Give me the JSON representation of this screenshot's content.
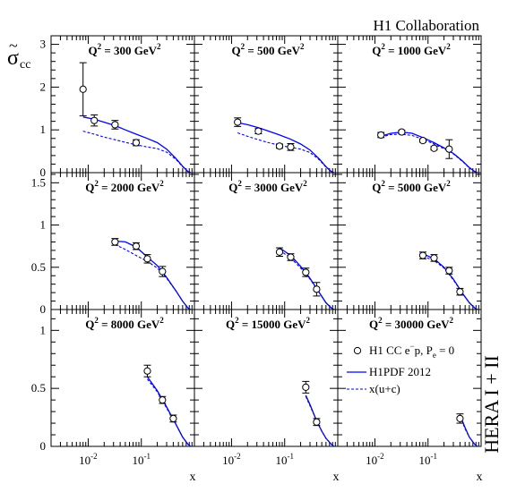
{
  "chart_data": {
    "type": "scatter",
    "collaboration": "H1 Collaboration",
    "ylabel_main": "σ",
    "ylabel_tilde": "~",
    "ylabel_sub": "cc",
    "xlabel": "x",
    "side_label": "HERA I + II",
    "x_log_scale": true,
    "xlim": [
      0.002,
      1.0
    ],
    "x_ticks": [
      {
        "base": "10",
        "exp": "-2",
        "value": 0.01
      },
      {
        "base": "10",
        "exp": "-1",
        "value": 0.1
      }
    ],
    "rows": [
      {
        "ylim": [
          0,
          3.2
        ],
        "yticks": [
          0,
          1,
          2,
          3
        ],
        "ytick_labels": [
          "0",
          "1",
          "2",
          "3"
        ]
      },
      {
        "ylim": [
          0,
          1.62
        ],
        "yticks": [
          0,
          0.5,
          1,
          1.5
        ],
        "ytick_labels": [
          "0",
          "0.5",
          "1",
          "1.5"
        ]
      },
      {
        "ylim": [
          0,
          1.18
        ],
        "yticks": [
          0,
          0.5,
          1
        ],
        "ytick_labels": [
          "0",
          "0.5",
          "1"
        ]
      }
    ],
    "legend": {
      "entries": [
        {
          "pre": "H1 CC e",
          "sup": "−",
          "mid": "p, P",
          "sub": "e",
          "post": " = 0",
          "style": "marker"
        },
        {
          "label": "H1PDF 2012",
          "style": "solid"
        },
        {
          "label": "x(u+c)",
          "style": "dashed"
        }
      ]
    },
    "panels": [
      {
        "q2_prefix": "Q",
        "q2_sup": "2",
        "q2_value": " = 300 GeV",
        "q2_unit_sup": "2",
        "points": [
          {
            "x": 0.008,
            "y": 1.95,
            "err": 0.62
          },
          {
            "x": 0.013,
            "y": 1.22,
            "err": 0.13
          },
          {
            "x": 0.032,
            "y": 1.12,
            "err": 0.1
          },
          {
            "x": 0.08,
            "y": 0.7,
            "err": 0.07
          }
        ],
        "full": [
          [
            0.008,
            1.3
          ],
          [
            0.013,
            1.25
          ],
          [
            0.02,
            1.18
          ],
          [
            0.032,
            1.1
          ],
          [
            0.05,
            1.0
          ],
          [
            0.08,
            0.9
          ],
          [
            0.13,
            0.8
          ],
          [
            0.2,
            0.7
          ],
          [
            0.3,
            0.55
          ],
          [
            0.45,
            0.33
          ],
          [
            0.6,
            0.15
          ],
          [
            0.75,
            0.03
          ],
          [
            0.85,
            0
          ]
        ],
        "dashed": [
          [
            0.008,
            0.97
          ],
          [
            0.013,
            0.9
          ],
          [
            0.02,
            0.83
          ],
          [
            0.032,
            0.77
          ],
          [
            0.05,
            0.71
          ],
          [
            0.08,
            0.65
          ],
          [
            0.13,
            0.6
          ],
          [
            0.2,
            0.56
          ],
          [
            0.3,
            0.48
          ],
          [
            0.45,
            0.31
          ],
          [
            0.6,
            0.14
          ],
          [
            0.75,
            0.03
          ],
          [
            0.85,
            0
          ]
        ]
      },
      {
        "q2_prefix": "Q",
        "q2_sup": "2",
        "q2_value": " = 500 GeV",
        "q2_unit_sup": "2",
        "points": [
          {
            "x": 0.013,
            "y": 1.18,
            "err": 0.1
          },
          {
            "x": 0.032,
            "y": 0.97,
            "err": 0.06
          },
          {
            "x": 0.08,
            "y": 0.62,
            "err": 0.05
          },
          {
            "x": 0.13,
            "y": 0.6,
            "err": 0.08
          }
        ],
        "full": [
          [
            0.013,
            1.17
          ],
          [
            0.02,
            1.12
          ],
          [
            0.032,
            1.05
          ],
          [
            0.05,
            0.97
          ],
          [
            0.08,
            0.88
          ],
          [
            0.13,
            0.78
          ],
          [
            0.2,
            0.67
          ],
          [
            0.3,
            0.53
          ],
          [
            0.45,
            0.32
          ],
          [
            0.6,
            0.14
          ],
          [
            0.75,
            0.03
          ],
          [
            0.85,
            0
          ]
        ],
        "dashed": [
          [
            0.013,
            0.93
          ],
          [
            0.02,
            0.85
          ],
          [
            0.032,
            0.77
          ],
          [
            0.05,
            0.7
          ],
          [
            0.08,
            0.64
          ],
          [
            0.13,
            0.59
          ],
          [
            0.2,
            0.55
          ],
          [
            0.3,
            0.47
          ],
          [
            0.45,
            0.3
          ],
          [
            0.6,
            0.13
          ],
          [
            0.75,
            0.03
          ],
          [
            0.85,
            0
          ]
        ]
      },
      {
        "q2_prefix": "Q",
        "q2_sup": "2",
        "q2_value": " = 1000 GeV",
        "q2_unit_sup": "2",
        "points": [
          {
            "x": 0.013,
            "y": 0.88,
            "err": 0.06
          },
          {
            "x": 0.032,
            "y": 0.95,
            "err": 0.04
          },
          {
            "x": 0.08,
            "y": 0.75,
            "err": 0.04
          },
          {
            "x": 0.13,
            "y": 0.57,
            "err": 0.04
          },
          {
            "x": 0.25,
            "y": 0.55,
            "err": 0.22
          }
        ],
        "full": [
          [
            0.013,
            0.85
          ],
          [
            0.02,
            0.92
          ],
          [
            0.032,
            0.95
          ],
          [
            0.05,
            0.92
          ],
          [
            0.08,
            0.82
          ],
          [
            0.13,
            0.7
          ],
          [
            0.2,
            0.58
          ],
          [
            0.3,
            0.45
          ],
          [
            0.45,
            0.27
          ],
          [
            0.6,
            0.12
          ],
          [
            0.75,
            0.03
          ],
          [
            0.85,
            0
          ]
        ],
        "dashed": [
          [
            0.013,
            0.83
          ],
          [
            0.02,
            0.89
          ],
          [
            0.032,
            0.9
          ],
          [
            0.05,
            0.87
          ],
          [
            0.08,
            0.78
          ],
          [
            0.13,
            0.67
          ],
          [
            0.2,
            0.56
          ],
          [
            0.3,
            0.44
          ],
          [
            0.45,
            0.26
          ],
          [
            0.6,
            0.11
          ],
          [
            0.75,
            0.03
          ],
          [
            0.85,
            0
          ]
        ]
      },
      {
        "q2_prefix": "Q",
        "q2_sup": "2",
        "q2_value": " = 2000 GeV",
        "q2_unit_sup": "2",
        "points": [
          {
            "x": 0.032,
            "y": 0.8,
            "err": 0.04
          },
          {
            "x": 0.08,
            "y": 0.75,
            "err": 0.04
          },
          {
            "x": 0.13,
            "y": 0.6,
            "err": 0.05
          },
          {
            "x": 0.25,
            "y": 0.45,
            "err": 0.06
          }
        ],
        "full": [
          [
            0.032,
            0.81
          ],
          [
            0.05,
            0.8
          ],
          [
            0.08,
            0.74
          ],
          [
            0.13,
            0.62
          ],
          [
            0.2,
            0.52
          ],
          [
            0.3,
            0.38
          ],
          [
            0.45,
            0.22
          ],
          [
            0.6,
            0.1
          ],
          [
            0.75,
            0.02
          ],
          [
            0.85,
            0
          ]
        ],
        "dashed": [
          [
            0.032,
            0.77
          ],
          [
            0.05,
            0.71
          ],
          [
            0.08,
            0.64
          ],
          [
            0.13,
            0.57
          ],
          [
            0.2,
            0.49
          ],
          [
            0.3,
            0.37
          ],
          [
            0.45,
            0.22
          ],
          [
            0.6,
            0.1
          ],
          [
            0.75,
            0.02
          ],
          [
            0.85,
            0
          ]
        ]
      },
      {
        "q2_prefix": "Q",
        "q2_sup": "2",
        "q2_value": " = 3000 GeV",
        "q2_unit_sup": "2",
        "points": [
          {
            "x": 0.08,
            "y": 0.68,
            "err": 0.05
          },
          {
            "x": 0.13,
            "y": 0.62,
            "err": 0.04
          },
          {
            "x": 0.25,
            "y": 0.44,
            "err": 0.05
          },
          {
            "x": 0.4,
            "y": 0.24,
            "err": 0.08
          }
        ],
        "full": [
          [
            0.08,
            0.73
          ],
          [
            0.13,
            0.64
          ],
          [
            0.2,
            0.51
          ],
          [
            0.3,
            0.37
          ],
          [
            0.45,
            0.2
          ],
          [
            0.6,
            0.08
          ],
          [
            0.75,
            0.02
          ],
          [
            0.85,
            0
          ]
        ],
        "dashed": [
          [
            0.08,
            0.7
          ],
          [
            0.13,
            0.61
          ],
          [
            0.2,
            0.49
          ],
          [
            0.3,
            0.36
          ],
          [
            0.45,
            0.2
          ],
          [
            0.6,
            0.08
          ],
          [
            0.75,
            0.02
          ],
          [
            0.85,
            0
          ]
        ]
      },
      {
        "q2_prefix": "Q",
        "q2_sup": "2",
        "q2_value": " = 5000 GeV",
        "q2_unit_sup": "2",
        "points": [
          {
            "x": 0.08,
            "y": 0.64,
            "err": 0.04
          },
          {
            "x": 0.13,
            "y": 0.61,
            "err": 0.04
          },
          {
            "x": 0.25,
            "y": 0.46,
            "err": 0.04
          },
          {
            "x": 0.4,
            "y": 0.21,
            "err": 0.04
          }
        ],
        "full": [
          [
            0.08,
            0.66
          ],
          [
            0.13,
            0.6
          ],
          [
            0.2,
            0.5
          ],
          [
            0.3,
            0.36
          ],
          [
            0.45,
            0.19
          ],
          [
            0.6,
            0.08
          ],
          [
            0.75,
            0.02
          ],
          [
            0.85,
            0
          ]
        ],
        "dashed": [
          [
            0.08,
            0.63
          ],
          [
            0.13,
            0.58
          ],
          [
            0.2,
            0.49
          ],
          [
            0.3,
            0.35
          ],
          [
            0.45,
            0.19
          ],
          [
            0.6,
            0.08
          ],
          [
            0.75,
            0.02
          ],
          [
            0.85,
            0
          ]
        ]
      },
      {
        "q2_prefix": "Q",
        "q2_sup": "2",
        "q2_value": " = 8000 GeV",
        "q2_unit_sup": "2",
        "points": [
          {
            "x": 0.13,
            "y": 0.65,
            "err": 0.05
          },
          {
            "x": 0.25,
            "y": 0.4,
            "err": 0.03
          },
          {
            "x": 0.4,
            "y": 0.24,
            "err": 0.03
          }
        ],
        "full": [
          [
            0.13,
            0.6
          ],
          [
            0.2,
            0.48
          ],
          [
            0.3,
            0.34
          ],
          [
            0.45,
            0.19
          ],
          [
            0.6,
            0.08
          ],
          [
            0.75,
            0.02
          ],
          [
            0.85,
            0
          ]
        ],
        "dashed": [
          [
            0.13,
            0.58
          ],
          [
            0.2,
            0.47
          ],
          [
            0.3,
            0.33
          ],
          [
            0.45,
            0.19
          ],
          [
            0.6,
            0.08
          ],
          [
            0.75,
            0.02
          ],
          [
            0.85,
            0
          ]
        ]
      },
      {
        "q2_prefix": "Q",
        "q2_sup": "2",
        "q2_value": " = 15000 GeV",
        "q2_unit_sup": "2",
        "points": [
          {
            "x": 0.25,
            "y": 0.51,
            "err": 0.05
          },
          {
            "x": 0.4,
            "y": 0.21,
            "err": 0.03
          }
        ],
        "full": [
          [
            0.25,
            0.44
          ],
          [
            0.3,
            0.36
          ],
          [
            0.4,
            0.22
          ],
          [
            0.5,
            0.13
          ],
          [
            0.6,
            0.07
          ],
          [
            0.75,
            0.02
          ],
          [
            0.85,
            0
          ]
        ],
        "dashed": [
          [
            0.25,
            0.43
          ],
          [
            0.3,
            0.35
          ],
          [
            0.4,
            0.22
          ],
          [
            0.5,
            0.13
          ],
          [
            0.6,
            0.07
          ],
          [
            0.75,
            0.02
          ],
          [
            0.85,
            0
          ]
        ]
      },
      {
        "q2_prefix": "Q",
        "q2_sup": "2",
        "q2_value": " = 30000 GeV",
        "q2_unit_sup": "2",
        "points": [
          {
            "x": 0.4,
            "y": 0.24,
            "err": 0.04
          }
        ],
        "full": [
          [
            0.4,
            0.27
          ],
          [
            0.5,
            0.16
          ],
          [
            0.6,
            0.08
          ],
          [
            0.75,
            0.02
          ],
          [
            0.85,
            0
          ]
        ],
        "dashed": [
          [
            0.4,
            0.26
          ],
          [
            0.5,
            0.15
          ],
          [
            0.6,
            0.08
          ],
          [
            0.75,
            0.02
          ],
          [
            0.85,
            0
          ]
        ]
      }
    ]
  }
}
